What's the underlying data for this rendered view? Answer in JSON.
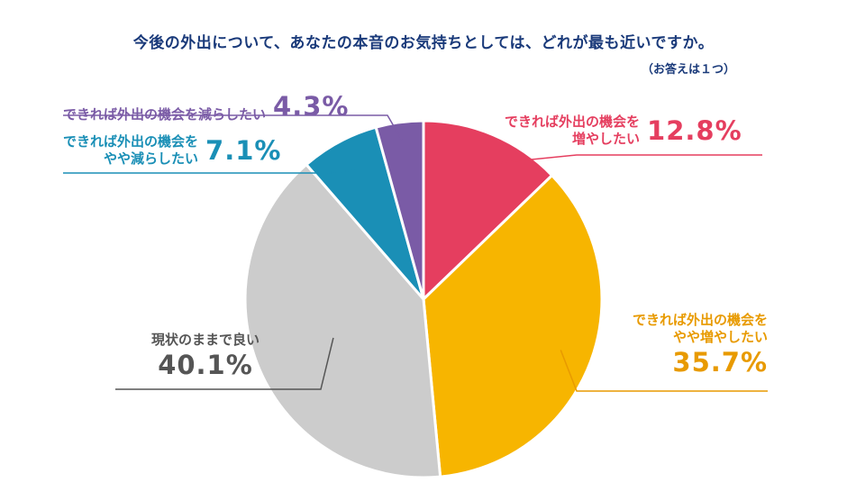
{
  "title": "今後の外出について、あなたの本音のお気持ちとしては、どれが最も近いですか。",
  "note": "（お答えは１つ）",
  "chart_data": {
    "type": "pie",
    "start_angle_deg": 0,
    "direction": "clockwise",
    "slices": [
      {
        "label_lines": [
          "できれば外出の機会を",
          "増やしたい"
        ],
        "value": 12.8,
        "value_label": "12.8%",
        "color": "#e53e5f"
      },
      {
        "label_lines": [
          "できれば外出の機会を",
          "やや増やしたい"
        ],
        "value": 35.7,
        "value_label": "35.7%",
        "color": "#f7b500"
      },
      {
        "label_lines": [
          "現状のままで良い"
        ],
        "value": 40.1,
        "value_label": "40.1%",
        "color": "#cccccc"
      },
      {
        "label_lines": [
          "できれば外出の機会を",
          "やや減らしたい"
        ],
        "value": 7.1,
        "value_label": "7.1%",
        "color": "#1a8fb6"
      },
      {
        "label_lines": [
          "できれば外出の機会を減らしたい"
        ],
        "value": 4.3,
        "value_label": "4.3%",
        "color": "#7a5ba6"
      }
    ]
  },
  "label_text_colors": {
    "increase": "#e53e5f",
    "slightly_increase": "#e89a00",
    "same": "#555555",
    "slightly_decrease": "#1a8fb6",
    "decrease": "#7a5ba6"
  }
}
